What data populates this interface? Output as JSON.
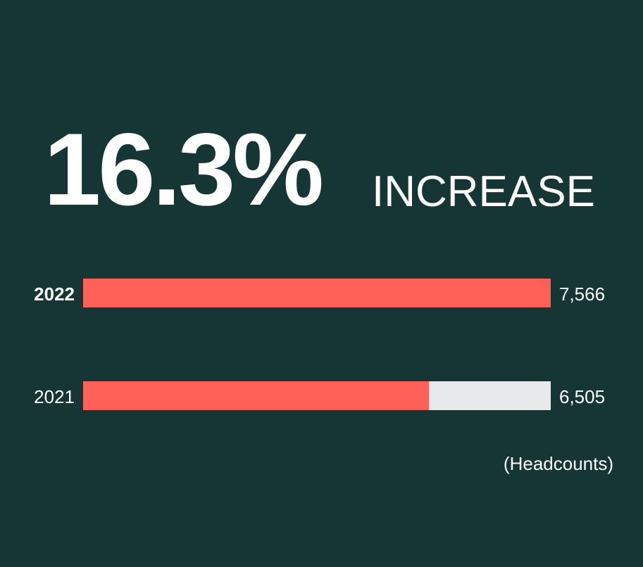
{
  "headline": {
    "value": "16.3%",
    "label": "INCREASE"
  },
  "unit_label": "(Headcounts)",
  "colors": {
    "background": "#153634",
    "bar": "#ff6159",
    "track": "#e7eaea",
    "text": "#ffffff"
  },
  "chart_data": {
    "type": "bar",
    "orientation": "horizontal",
    "categories": [
      "2022",
      "2021"
    ],
    "values": [
      7566,
      6505
    ],
    "value_labels": [
      "7,566",
      "6,505"
    ],
    "bar_fraction_of_track": [
      1.0,
      0.74
    ],
    "title": "",
    "xlabel": "",
    "ylabel": "",
    "unit": "(Headcounts)",
    "legend": "none",
    "grid": false
  }
}
